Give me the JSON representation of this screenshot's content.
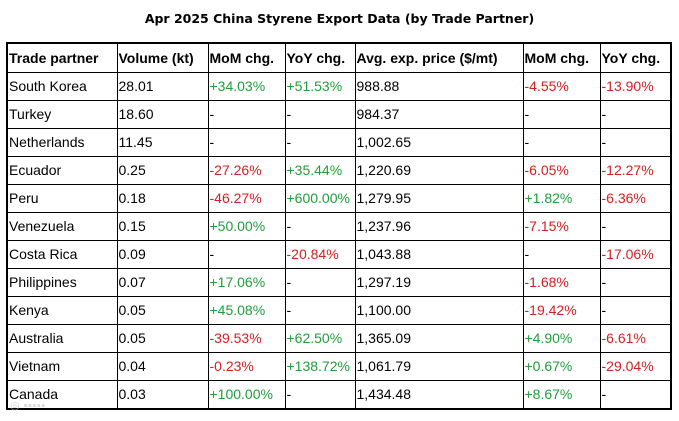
{
  "title": "Apr 2025 China Styrene Export Data (by Trade Partner)",
  "columns": [
    "Trade partner",
    "Volume (kt)",
    "MoM chg.",
    "YoY chg.",
    "Avg. exp. price ($/mt)",
    "MoM chg.",
    "YoY chg."
  ],
  "colors": {
    "positive": "#1f9e3a",
    "negative": "#d62020"
  },
  "rows": [
    {
      "partner": "South Korea",
      "volume": "28.01",
      "vol_mom": "+34.03%",
      "vol_yoy": "+51.53%",
      "price": "988.88",
      "price_mom": "-4.55%",
      "price_yoy": "-13.90%"
    },
    {
      "partner": "Turkey",
      "volume": "18.60",
      "vol_mom": "-",
      "vol_yoy": "-",
      "price": "984.37",
      "price_mom": "-",
      "price_yoy": "-"
    },
    {
      "partner": "Netherlands",
      "volume": "11.45",
      "vol_mom": "-",
      "vol_yoy": "-",
      "price": "1,002.65",
      "price_mom": "-",
      "price_yoy": "-"
    },
    {
      "partner": "Ecuador",
      "volume": "0.25",
      "vol_mom": "-27.26%",
      "vol_yoy": "+35.44%",
      "price": "1,220.69",
      "price_mom": "-6.05%",
      "price_yoy": "-12.27%"
    },
    {
      "partner": "Peru",
      "volume": "0.18",
      "vol_mom": "-46.27%",
      "vol_yoy": "+600.00%",
      "price": "1,279.95",
      "price_mom": "+1.82%",
      "price_yoy": "-6.36%"
    },
    {
      "partner": "Venezuela",
      "volume": "0.15",
      "vol_mom": "+50.00%",
      "vol_yoy": "-",
      "price": "1,237.96",
      "price_mom": "-7.15%",
      "price_yoy": "-"
    },
    {
      "partner": "Costa Rica",
      "volume": "0.09",
      "vol_mom": "-",
      "vol_yoy": "-20.84%",
      "price": "1,043.88",
      "price_mom": "-",
      "price_yoy": "-17.06%"
    },
    {
      "partner": "Philippines",
      "volume": "0.07",
      "vol_mom": "+17.06%",
      "vol_yoy": "-",
      "price": "1,297.19",
      "price_mom": "-1.68%",
      "price_yoy": "-"
    },
    {
      "partner": "Kenya",
      "volume": "0.05",
      "vol_mom": "+45.08%",
      "vol_yoy": "-",
      "price": "1,100.00",
      "price_mom": "-19.42%",
      "price_yoy": "-"
    },
    {
      "partner": "Australia",
      "volume": "0.05",
      "vol_mom": "-39.53%",
      "vol_yoy": "+62.50%",
      "price": "1,365.09",
      "price_mom": "+4.90%",
      "price_yoy": "-6.61%"
    },
    {
      "partner": "Vietnam",
      "volume": "0.04",
      "vol_mom": "-0.23%",
      "vol_yoy": "+138.72%",
      "price": "1,061.79",
      "price_mom": "+0.67%",
      "price_yoy": "-29.04%"
    },
    {
      "partner": "Canada",
      "volume": "0.03",
      "vol_mom": "+100.00%",
      "vol_yoy": "-",
      "price": "1,434.48",
      "price_mom": "+8.67%",
      "price_yoy": "-"
    }
  ]
}
